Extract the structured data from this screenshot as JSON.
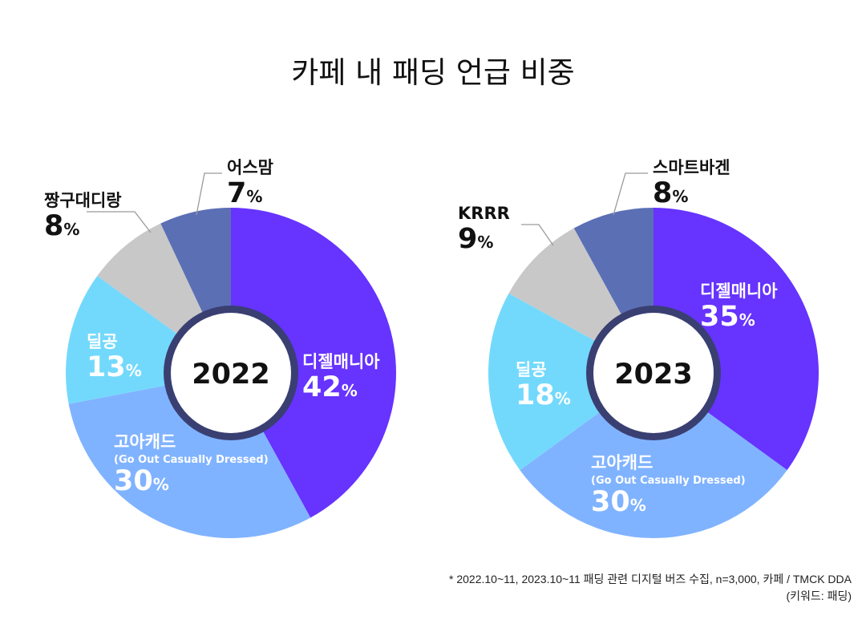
{
  "title": "카페 내 패딩 언급 비중",
  "chart_data": [
    {
      "type": "pie",
      "year": "2022",
      "title": "2022",
      "slices": [
        {
          "label": "디젤매니아",
          "sublabel": "",
          "value": 42,
          "display": "42",
          "color": "#6633ff"
        },
        {
          "label": "고아캐드",
          "sublabel": "(Go Out Casually Dressed)",
          "value": 30,
          "display": "30",
          "color": "#80b3ff"
        },
        {
          "label": "딜공",
          "sublabel": "",
          "value": 13,
          "display": "13",
          "color": "#73d9fc"
        },
        {
          "label": "짱구대디랑",
          "sublabel": "",
          "value": 8,
          "display": "8",
          "color": "#c8c8c8"
        },
        {
          "label": "어스맘",
          "sublabel": "",
          "value": 7,
          "display": "7",
          "color": "#5b6fb5"
        }
      ]
    },
    {
      "type": "pie",
      "year": "2023",
      "title": "2023",
      "slices": [
        {
          "label": "디젤매니아",
          "sublabel": "",
          "value": 35,
          "display": "35",
          "color": "#6633ff"
        },
        {
          "label": "고아캐드",
          "sublabel": "(Go Out Casually Dressed)",
          "value": 30,
          "display": "30",
          "color": "#80b3ff"
        },
        {
          "label": "딜공",
          "sublabel": "",
          "value": 18,
          "display": "18",
          "color": "#73d9fc"
        },
        {
          "label": "KRRR",
          "sublabel": "",
          "value": 9,
          "display": "9",
          "color": "#c8c8c8"
        },
        {
          "label": "스마트바겐",
          "sublabel": "",
          "value": 8,
          "display": "8",
          "color": "#5b6fb5"
        }
      ]
    }
  ],
  "percent_sign": "%",
  "footnote": {
    "line1": "* 2022.10~11, 2023.10~11 패딩 관련 디지털 버즈 수집, n=3,000, 카페 / TMCK DDA",
    "line2": "(키워드: 패딩)"
  }
}
